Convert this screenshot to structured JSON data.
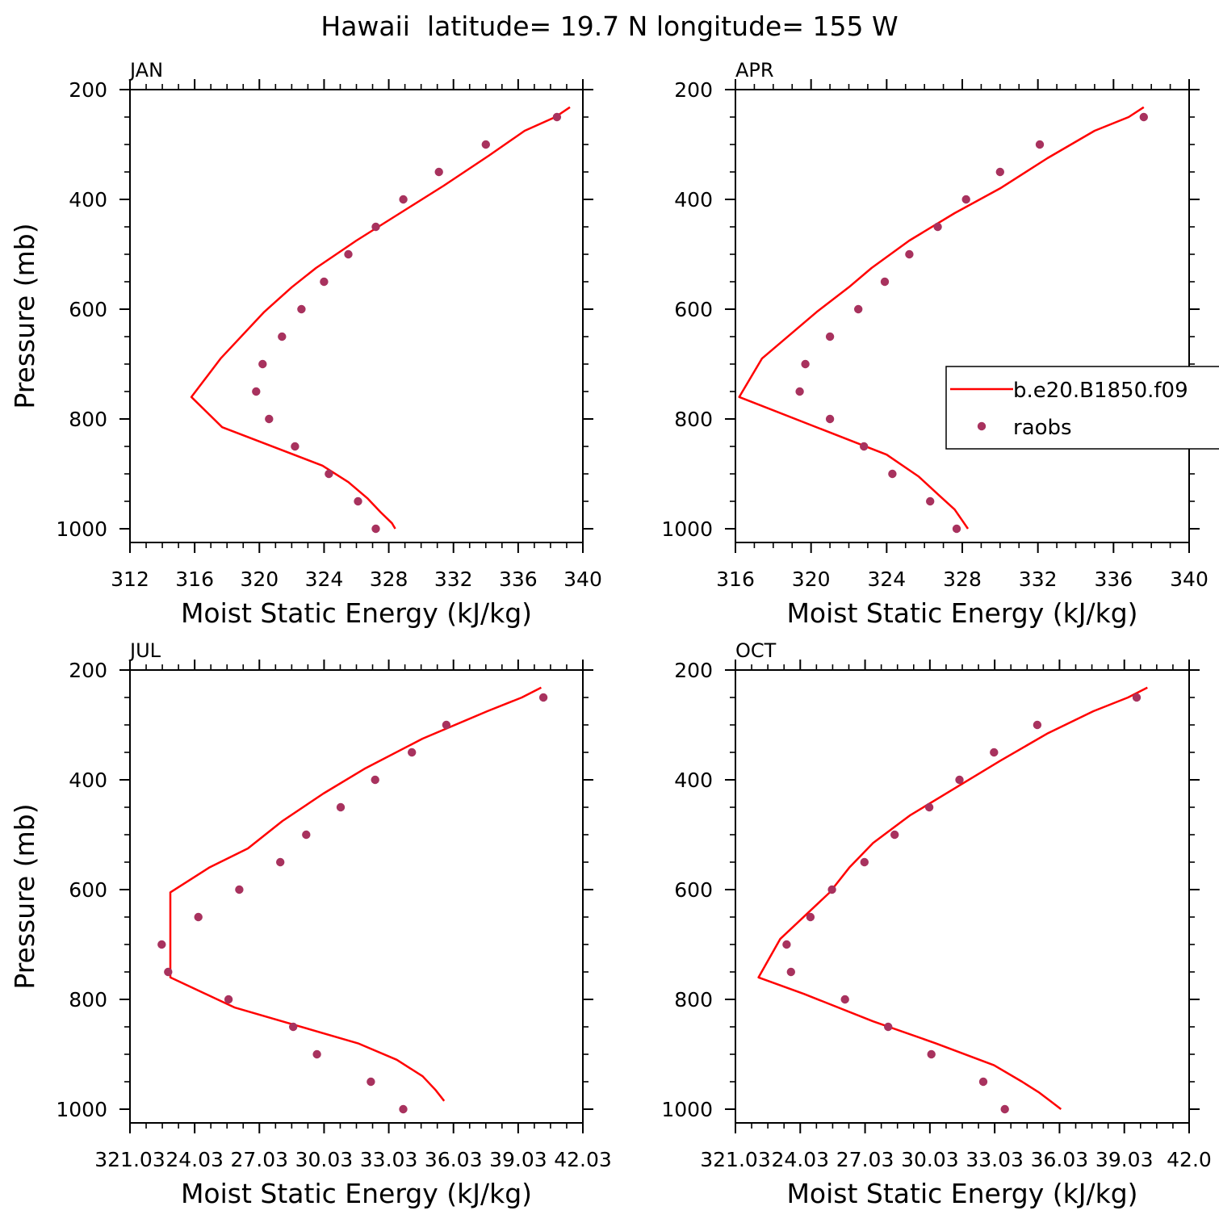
{
  "title": "Hawaii  latitude= 19.7 N longitude= 155 W",
  "colors": {
    "model_line": "#ff0000",
    "obs_marker": "#a8325e",
    "axis": "#000000"
  },
  "legend": {
    "placement": "right, inside APR panel",
    "items": [
      {
        "label": "b.e20.B1850.f09",
        "marker": "line"
      },
      {
        "label": "raobs",
        "marker": "dot"
      }
    ]
  },
  "chart_data": [
    {
      "type": "line",
      "panel_label": "JAN",
      "xlabel": "Moist Static Energy (kJ/kg)",
      "ylabel": "Pressure (mb)",
      "xlim": [
        312,
        340
      ],
      "ylim": [
        1025,
        200
      ],
      "y_reversed": true,
      "xticks": [
        312,
        316,
        320,
        324,
        328,
        332,
        336,
        340
      ],
      "xtick_labels": [
        "312",
        "316",
        "320",
        "324",
        "328",
        "332",
        "336",
        "340"
      ],
      "yticks": [
        200,
        400,
        600,
        800,
        1000
      ],
      "ytick_labels": [
        "200",
        "400",
        "600",
        "800",
        "1000"
      ],
      "series": [
        {
          "name": "b.e20.B1850.f09",
          "style": "line",
          "x": [
            339.2,
            338.3,
            336.4,
            334.2,
            331.4,
            328.7,
            326.0,
            323.5,
            322.0,
            320.3,
            317.6,
            315.8,
            317.7,
            323.9,
            325.5,
            326.7,
            327.5,
            328.2,
            328.4
          ],
          "y": [
            232,
            250,
            275,
            320,
            375,
            425,
            475,
            525,
            560,
            605,
            690,
            760,
            815,
            885,
            915,
            945,
            970,
            990,
            1000
          ]
        },
        {
          "name": "raobs",
          "style": "points",
          "x": [
            338.4,
            334.0,
            331.1,
            328.9,
            327.2,
            325.5,
            324.0,
            322.6,
            321.4,
            320.2,
            319.8,
            320.6,
            322.2,
            324.3,
            326.1,
            327.2
          ],
          "y": [
            250,
            300,
            350,
            400,
            450,
            500,
            550,
            600,
            650,
            700,
            750,
            800,
            850,
            900,
            950,
            1000
          ]
        }
      ]
    },
    {
      "type": "line",
      "panel_label": "APR",
      "xlabel": "Moist Static Energy (kJ/kg)",
      "ylabel": "",
      "xlim": [
        316,
        340
      ],
      "ylim": [
        1025,
        200
      ],
      "y_reversed": true,
      "xticks": [
        316,
        320,
        324,
        328,
        332,
        336,
        340
      ],
      "xtick_labels": [
        "316",
        "320",
        "324",
        "328",
        "332",
        "336",
        "340"
      ],
      "yticks": [
        200,
        400,
        600,
        800,
        1000
      ],
      "ytick_labels": [
        "200",
        "400",
        "600",
        "800",
        "1000"
      ],
      "series": [
        {
          "name": "b.e20.B1850.f09",
          "style": "line",
          "x": [
            337.6,
            336.8,
            335.0,
            332.5,
            330.0,
            327.6,
            325.2,
            323.2,
            322.0,
            320.3,
            317.4,
            316.2,
            324.0,
            325.7,
            326.8,
            327.6,
            328.0,
            328.3
          ],
          "y": [
            232,
            250,
            275,
            325,
            380,
            425,
            475,
            525,
            560,
            605,
            690,
            760,
            865,
            905,
            940,
            965,
            985,
            1000
          ]
        },
        {
          "name": "raobs",
          "style": "points",
          "x": [
            337.6,
            332.1,
            330.0,
            328.2,
            326.7,
            325.2,
            323.9,
            322.5,
            321.0,
            319.7,
            319.4,
            321.0,
            322.8,
            324.3,
            326.3,
            327.7
          ],
          "y": [
            250,
            300,
            350,
            400,
            450,
            500,
            550,
            600,
            650,
            700,
            750,
            800,
            850,
            900,
            950,
            1000
          ]
        }
      ]
    },
    {
      "type": "line",
      "panel_label": "JUL",
      "xlabel": "Moist Static Energy (kJ/kg)",
      "ylabel": "Pressure (mb)",
      "xlim": [
        321.03,
        342.03
      ],
      "ylim": [
        1025,
        200
      ],
      "y_reversed": true,
      "xticks": [
        321.03,
        324.03,
        327.03,
        330.03,
        333.03,
        336.03,
        339.03,
        342.03
      ],
      "xtick_labels": [
        "321.03",
        "24.03",
        "27.03",
        "30.03",
        "33.03",
        "36.03",
        "39.03",
        "42.03"
      ],
      "yticks": [
        200,
        400,
        600,
        800,
        1000
      ],
      "ytick_labels": [
        "200",
        "400",
        "600",
        "800",
        "1000"
      ],
      "series": [
        {
          "name": "b.e20.B1850.f09",
          "style": "line",
          "x": [
            340.1,
            339.2,
            337.6,
            334.6,
            331.9,
            330.0,
            328.1,
            326.5,
            324.7,
            322.9,
            322.9,
            322.9,
            325.9,
            331.6,
            333.4,
            334.6,
            335.2,
            335.6
          ],
          "y": [
            232,
            250,
            275,
            325,
            380,
            425,
            475,
            525,
            560,
            605,
            690,
            760,
            815,
            880,
            910,
            940,
            965,
            985
          ]
        },
        {
          "name": "raobs",
          "style": "points",
          "x": [
            340.2,
            335.7,
            334.1,
            332.4,
            330.8,
            329.2,
            328.0,
            326.1,
            324.2,
            322.5,
            322.8,
            325.6,
            328.6,
            329.7,
            332.2,
            333.7
          ],
          "y": [
            250,
            300,
            350,
            400,
            450,
            500,
            550,
            600,
            650,
            700,
            750,
            800,
            850,
            900,
            950,
            1000
          ]
        }
      ]
    },
    {
      "type": "line",
      "panel_label": "OCT",
      "xlabel": "Moist Static Energy (kJ/kg)",
      "ylabel": "",
      "xlim": [
        321.03,
        342.03
      ],
      "ylim": [
        1025,
        200
      ],
      "y_reversed": true,
      "xticks": [
        321.03,
        324.03,
        327.03,
        330.03,
        333.03,
        336.03,
        339.03,
        342.03
      ],
      "xtick_labels": [
        "321.03",
        "24.03",
        "27.03",
        "30.03",
        "33.03",
        "36.03",
        "39.03",
        "42.0"
      ],
      "yticks": [
        200,
        400,
        600,
        800,
        1000
      ],
      "ytick_labels": [
        "200",
        "400",
        "600",
        "800",
        "1000"
      ],
      "series": [
        {
          "name": "b.e20.B1850.f09",
          "style": "line",
          "x": [
            340.1,
            339.2,
            337.6,
            335.5,
            333.3,
            331.2,
            329.1,
            327.4,
            326.3,
            325.4,
            323.1,
            322.1,
            324.2,
            327.4,
            330.3,
            333.0,
            334.3,
            335.1,
            335.6,
            336.1
          ],
          "y": [
            232,
            250,
            275,
            315,
            365,
            415,
            465,
            515,
            560,
            605,
            690,
            760,
            790,
            840,
            880,
            920,
            950,
            970,
            985,
            1000
          ]
        },
        {
          "name": "raobs",
          "style": "points",
          "x": [
            339.6,
            335.0,
            333.0,
            331.4,
            330.0,
            328.4,
            327.0,
            325.5,
            324.5,
            323.4,
            323.6,
            326.1,
            328.1,
            330.1,
            332.5,
            333.5
          ],
          "y": [
            250,
            300,
            350,
            400,
            450,
            500,
            550,
            600,
            650,
            700,
            750,
            800,
            850,
            900,
            950,
            1000
          ]
        }
      ]
    }
  ]
}
